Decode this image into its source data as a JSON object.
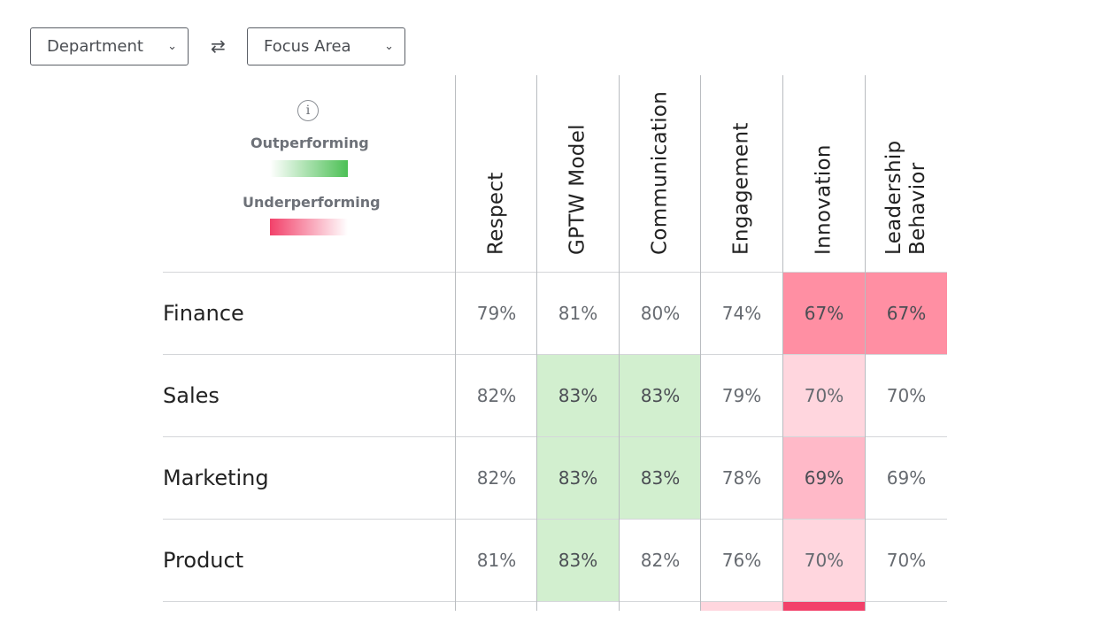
{
  "filters": {
    "department_label": "Department",
    "focus_label": "Focus Area",
    "swap_icon": "swap-arrows-icon"
  },
  "legend": {
    "info_glyph": "i",
    "outperforming": "Outperforming",
    "underperforming": "Underperforming",
    "outperform_color": "#4cc055",
    "underperform_color": "#f2416a"
  },
  "columns": [
    "Respect",
    "GPTW Model",
    "Communication",
    "Engagement",
    "Innovation",
    "Leadership Behavior"
  ],
  "rows": [
    {
      "label": "Finance",
      "values": [
        "79%",
        "81%",
        "80%",
        "74%",
        "67%",
        "67%"
      ]
    },
    {
      "label": "Sales",
      "values": [
        "82%",
        "83%",
        "83%",
        "79%",
        "70%",
        "70%"
      ]
    },
    {
      "label": "Marketing",
      "values": [
        "82%",
        "83%",
        "83%",
        "78%",
        "69%",
        "69%"
      ]
    },
    {
      "label": "Product",
      "values": [
        "81%",
        "83%",
        "82%",
        "76%",
        "70%",
        "70%"
      ]
    }
  ]
}
